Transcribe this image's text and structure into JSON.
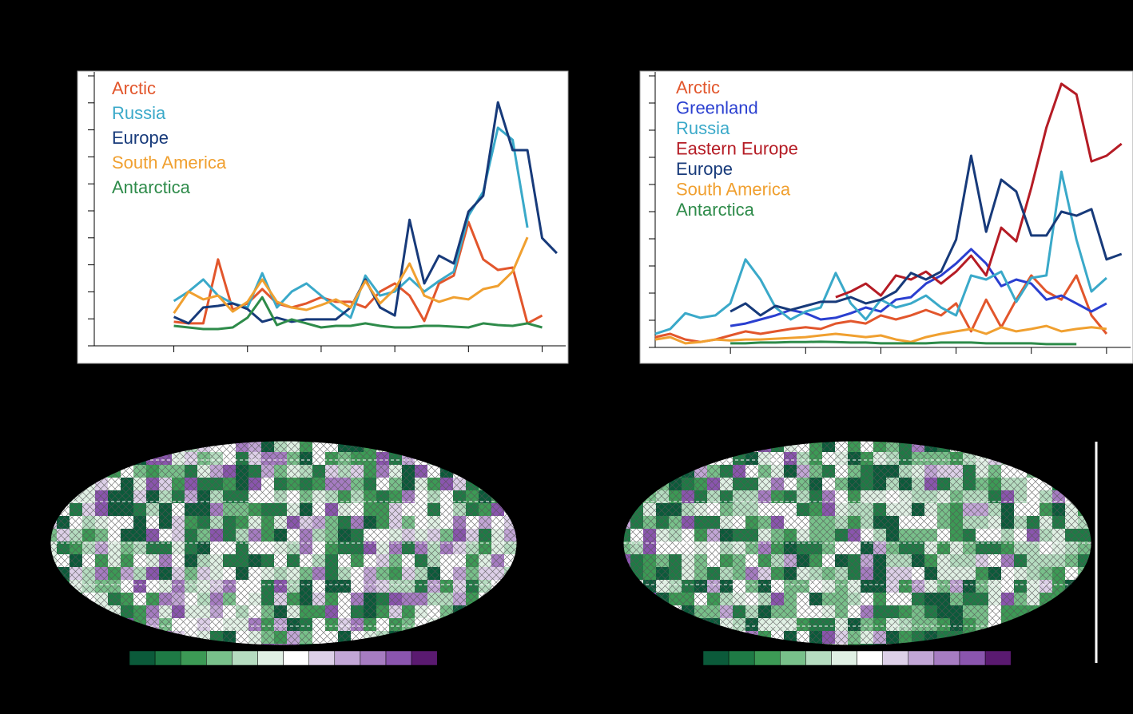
{
  "chart_data": [
    {
      "type": "line",
      "x": [
        0,
        1,
        2,
        3,
        4,
        5,
        6,
        7,
        8,
        9,
        10,
        11,
        12,
        13,
        14,
        15,
        16,
        17,
        18,
        19,
        20,
        21,
        22,
        23,
        24,
        25,
        26
      ],
      "xlim": [
        -5.4,
        26.6
      ],
      "xticks": [
        0,
        5,
        10,
        15,
        20,
        25
      ],
      "ylim": [
        0,
        100
      ],
      "yticks": [
        0,
        10,
        20,
        30,
        40,
        50,
        60,
        70,
        80,
        90,
        100
      ],
      "series": [
        {
          "name": "Arctic",
          "color": "#e2562c",
          "values": [
            8.9,
            8.3,
            8.3,
            32,
            13.3,
            15.7,
            21,
            15.7,
            14.2,
            15.7,
            18,
            16.3,
            16.3,
            14.2,
            20.1,
            23.1,
            18.6,
            9.2,
            23.1,
            26,
            45.9,
            32,
            28.1,
            29,
            8.3,
            11.2,
            null
          ]
        },
        {
          "name": "Russia",
          "color": "#3aa9c9",
          "values": [
            16.6,
            20.1,
            24.6,
            18.6,
            15.7,
            14.2,
            26.9,
            14.2,
            20.1,
            23.1,
            18.6,
            14.2,
            10.4,
            26,
            18.6,
            20.1,
            25.1,
            20.1,
            24,
            27.5,
            48.2,
            57.1,
            80.8,
            76.3,
            43.8,
            null,
            null
          ]
        },
        {
          "name": "Europe",
          "color": "#173a7a",
          "values": [
            10.7,
            8.3,
            14.2,
            14.8,
            15.7,
            13.6,
            8.9,
            10.4,
            8.9,
            9.8,
            9.8,
            9.8,
            14.2,
            24.6,
            14.2,
            11.2,
            46.7,
            23.1,
            33.4,
            30.5,
            49.7,
            55.6,
            90.2,
            72.5,
            72.5,
            39.9,
            34.3
          ]
        },
        {
          "name": "South America",
          "color": "#f0a030",
          "values": [
            12.1,
            20.1,
            17.2,
            18.6,
            12.7,
            16.3,
            24.6,
            16.3,
            14.2,
            13.3,
            15.1,
            17.2,
            14.2,
            24,
            15.7,
            21,
            30.5,
            18.6,
            16.3,
            18,
            17.2,
            21,
            22.2,
            27.5,
            40.2,
            null,
            null
          ]
        },
        {
          "name": "Antarctica",
          "color": "#2e8b4a",
          "values": [
            7.4,
            6.8,
            6.2,
            6.2,
            6.8,
            10.4,
            18,
            7.7,
            9.8,
            8.3,
            6.8,
            7.4,
            7.4,
            8.3,
            7.4,
            6.8,
            6.8,
            7.4,
            7.4,
            7.1,
            6.8,
            8.3,
            7.7,
            7.4,
            8.3,
            6.8,
            null
          ]
        }
      ]
    },
    {
      "type": "line",
      "x": [
        -5,
        -4,
        -3,
        -2,
        -1,
        0,
        1,
        2,
        3,
        4,
        5,
        6,
        7,
        8,
        9,
        10,
        11,
        12,
        13,
        14,
        15,
        16,
        17,
        18,
        19,
        20,
        21,
        22,
        23,
        24,
        25,
        26
      ],
      "xlim": [
        -5,
        26.6
      ],
      "xticks": [
        0,
        5,
        10,
        15,
        20,
        25
      ],
      "ylim": [
        0,
        100
      ],
      "yticks": [
        0,
        10,
        20,
        30,
        40,
        50,
        60,
        70,
        80,
        90,
        100
      ],
      "series": [
        {
          "name": "Arctic",
          "color": "#e2562c",
          "values": [
            3.8,
            5,
            2.9,
            2,
            2.9,
            4.4,
            5.9,
            5,
            5.9,
            6.8,
            7.4,
            6.8,
            8.8,
            9.7,
            8.8,
            11.8,
            10.3,
            11.8,
            13.8,
            11.8,
            16.2,
            5.9,
            17.6,
            7.4,
            17.6,
            26.5,
            20.6,
            17.6,
            26.5,
            11.8,
            5,
            null
          ]
        },
        {
          "name": "Greenland",
          "color": "#2a3fd0",
          "values": [
            null,
            null,
            null,
            null,
            null,
            7.9,
            8.8,
            10.3,
            11.8,
            13.8,
            12.6,
            10.3,
            10.9,
            12.6,
            14.7,
            13.2,
            17.6,
            18.5,
            23.5,
            26.5,
            30.9,
            36.2,
            30.9,
            22.6,
            25,
            23.5,
            17.6,
            19.1,
            16.2,
            13.2,
            16.2,
            null
          ]
        },
        {
          "name": "Russia",
          "color": "#3aa9c9",
          "values": [
            5,
            6.8,
            12.6,
            10.9,
            11.8,
            16.2,
            32.4,
            25,
            14.7,
            10.3,
            13.2,
            14.7,
            27.4,
            16.2,
            10.3,
            17.6,
            14.7,
            16.2,
            19.1,
            14.7,
            11.8,
            26.5,
            25,
            27.9,
            16.8,
            25.6,
            26.5,
            64.7,
            39.7,
            20.6,
            25.6,
            null
          ]
        },
        {
          "name": "Eastern Europe",
          "color": "#b51c25",
          "values": [
            null,
            null,
            null,
            null,
            null,
            null,
            null,
            null,
            null,
            null,
            null,
            null,
            18.5,
            20.6,
            23.5,
            19.1,
            26.5,
            25,
            27.9,
            23.5,
            27.9,
            33.8,
            26.5,
            44.1,
            39.1,
            58.8,
            80.9,
            97.1,
            93.2,
            68.5,
            70.6,
            75
          ]
        },
        {
          "name": "Europe",
          "color": "#173a7a",
          "values": [
            null,
            null,
            null,
            null,
            null,
            13.2,
            16.2,
            11.8,
            15.3,
            13.8,
            15.3,
            16.8,
            16.8,
            18.5,
            16.2,
            17.6,
            20.6,
            27.4,
            25,
            27.9,
            39.7,
            70.6,
            42.6,
            61.8,
            57.4,
            41.2,
            41.2,
            50,
            48.5,
            50.9,
            32.4,
            34.4
          ]
        },
        {
          "name": "South America",
          "color": "#f0a030",
          "values": [
            2.9,
            3.8,
            1.5,
            2,
            2.9,
            2.6,
            2.9,
            2.9,
            3.2,
            3.5,
            3.8,
            4.4,
            5,
            4.4,
            3.8,
            4.4,
            2.9,
            2,
            3.8,
            5,
            5.9,
            6.8,
            5,
            7.4,
            5.9,
            6.8,
            7.9,
            5.9,
            6.8,
            7.4,
            6.8,
            null
          ]
        },
        {
          "name": "Antarctica",
          "color": "#2e8b4a",
          "values": [
            null,
            null,
            null,
            null,
            null,
            1.5,
            1.5,
            1.8,
            1.8,
            2,
            2,
            2.1,
            2,
            1.8,
            1.8,
            1.5,
            1.5,
            1.5,
            1.5,
            1.8,
            1.8,
            1.8,
            1.5,
            1.5,
            1.5,
            1.5,
            1.2,
            1.2,
            1.2,
            null,
            null,
            null
          ]
        }
      ]
    }
  ]
}
